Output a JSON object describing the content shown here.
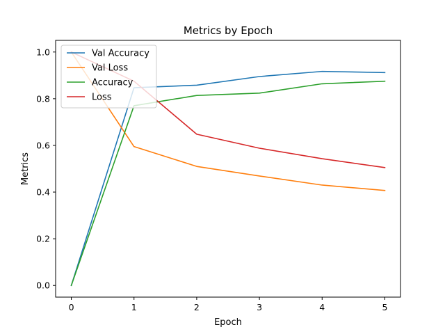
{
  "chart_data": {
    "type": "line",
    "title": "Metrics by Epoch",
    "xlabel": "Epoch",
    "ylabel": "Metrics",
    "x": [
      0,
      1,
      2,
      3,
      4,
      5
    ],
    "xlim": [
      -0.25,
      5.25
    ],
    "ylim": [
      -0.05,
      1.05
    ],
    "xticks": [
      0,
      1,
      2,
      3,
      4,
      5
    ],
    "yticks": [
      0.0,
      0.2,
      0.4,
      0.6,
      0.8,
      1.0
    ],
    "ytick_labels": [
      "0.0",
      "0.2",
      "0.4",
      "0.6",
      "0.8",
      "1.0"
    ],
    "grid": false,
    "legend": "upper-left",
    "series": [
      {
        "name": "Val Accuracy",
        "color": "#1f77b4",
        "values": [
          0.0,
          0.847,
          0.858,
          0.895,
          0.917,
          0.912
        ]
      },
      {
        "name": "Val Loss",
        "color": "#ff7f0e",
        "values": [
          1.0,
          0.595,
          0.51,
          0.469,
          0.43,
          0.407
        ]
      },
      {
        "name": "Accuracy",
        "color": "#2ca02c",
        "values": [
          0.0,
          0.77,
          0.814,
          0.824,
          0.864,
          0.875
        ]
      },
      {
        "name": "Loss",
        "color": "#d62728",
        "values": [
          1.0,
          0.875,
          0.648,
          0.588,
          0.543,
          0.505
        ]
      }
    ]
  }
}
